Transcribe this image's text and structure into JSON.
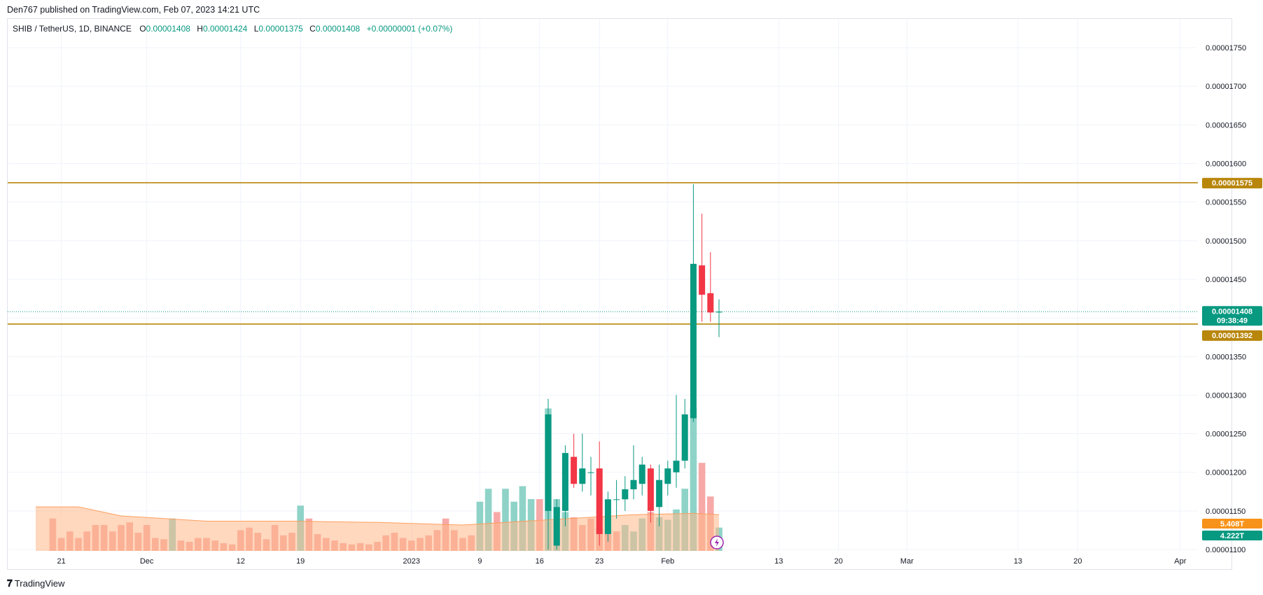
{
  "header": {
    "published": "Den767 published on TradingView.com, Feb 07, 2023 14:21 UTC"
  },
  "legend": {
    "symbol": "SHIB / TetherUS, 1D, BINANCE",
    "o_label": "O",
    "o": "0.00001408",
    "h_label": "H",
    "h": "0.00001424",
    "l_label": "L",
    "l": "0.00001375",
    "c_label": "C",
    "c": "0.00001408",
    "change": "+0.00000001 (+0.07%)"
  },
  "footer": {
    "logo": "𝟕",
    "brand": "TradingView"
  },
  "colors": {
    "up": "#089981",
    "down": "#f23645",
    "vol_up": "#8fd3c8",
    "vol_down": "#f7a9a7",
    "vol_ma": "#ffb888",
    "level": "#b8860b",
    "last": "#089981"
  },
  "chart_data": {
    "type": "candlestick",
    "y_axis": {
      "range": [
        1.1e-05,
        1.775e-05
      ],
      "ticks": [
        "0.00001750",
        "0.00001700",
        "0.00001650",
        "0.00001600",
        "0.00001550",
        "0.00001500",
        "0.00001450",
        "0.00001400",
        "0.00001350",
        "0.00001300",
        "0.00001250",
        "0.00001200",
        "0.00001150",
        "0.00001100"
      ]
    },
    "x_axis": {
      "ticks": [
        {
          "label": "21",
          "day": -77
        },
        {
          "label": "Dec",
          "day": -67
        },
        {
          "label": "12",
          "day": -56
        },
        {
          "label": "19",
          "day": -49
        },
        {
          "label": "2023",
          "day": -36
        },
        {
          "label": "9",
          "day": -28
        },
        {
          "label": "16",
          "day": -21
        },
        {
          "label": "23",
          "day": -14
        },
        {
          "label": "Feb",
          "day": -6
        },
        {
          "label": "13",
          "day": 7
        },
        {
          "label": "20",
          "day": 14
        },
        {
          "label": "Mar",
          "day": 22
        },
        {
          "label": "13",
          "day": 35
        },
        {
          "label": "20",
          "day": 42
        },
        {
          "label": "Apr",
          "day": 54
        }
      ]
    },
    "levels": [
      {
        "value": 1.575e-05,
        "label": "0.00001575"
      },
      {
        "value": 1.392e-05,
        "label": "0.00001392"
      }
    ],
    "last_price": {
      "value": 1.408e-05,
      "label": "0.00001408",
      "countdown": "09:38:49"
    },
    "volume_labels": [
      {
        "label": "5.408T",
        "color": "#f7931a"
      },
      {
        "label": "4.222T",
        "color": "#089981"
      }
    ],
    "candles": [
      {
        "day": -20,
        "o": 1.15e-05,
        "h": 1.295e-05,
        "l": 1.1e-05,
        "c": 1.275e-05
      },
      {
        "day": -19,
        "o": 1.105e-05,
        "h": 1.165e-05,
        "l": 1.1e-05,
        "c": 1.155e-05
      },
      {
        "day": -18,
        "o": 1.15e-05,
        "h": 1.235e-05,
        "l": 1.13e-05,
        "c": 1.225e-05
      },
      {
        "day": -17,
        "o": 1.22e-05,
        "h": 1.25e-05,
        "l": 1.18e-05,
        "c": 1.185e-05
      },
      {
        "day": -16,
        "o": 1.185e-05,
        "h": 1.25e-05,
        "l": 1.175e-05,
        "c": 1.205e-05
      },
      {
        "day": -15,
        "o": 1.2e-05,
        "h": 1.22e-05,
        "l": 1.17e-05,
        "c": 1.2e-05
      },
      {
        "day": -14,
        "o": 1.205e-05,
        "h": 1.24e-05,
        "l": 1.105e-05,
        "c": 1.12e-05
      },
      {
        "day": -13,
        "o": 1.12e-05,
        "h": 1.175e-05,
        "l": 1.11e-05,
        "c": 1.165e-05
      },
      {
        "day": -12,
        "o": 1.165e-05,
        "h": 1.19e-05,
        "l": 1.14e-05,
        "c": 1.165e-05
      },
      {
        "day": -11,
        "o": 1.165e-05,
        "h": 1.195e-05,
        "l": 1.15e-05,
        "c": 1.178e-05
      },
      {
        "day": -10,
        "o": 1.178e-05,
        "h": 1.235e-05,
        "l": 1.165e-05,
        "c": 1.19e-05
      },
      {
        "day": -9,
        "o": 1.185e-05,
        "h": 1.22e-05,
        "l": 1.17e-05,
        "c": 1.21e-05
      },
      {
        "day": -8,
        "o": 1.205e-05,
        "h": 1.21e-05,
        "l": 1.135e-05,
        "c": 1.15e-05
      },
      {
        "day": -7,
        "o": 1.155e-05,
        "h": 1.21e-05,
        "l": 1.13e-05,
        "c": 1.19e-05
      },
      {
        "day": -6,
        "o": 1.185e-05,
        "h": 1.215e-05,
        "l": 1.17e-05,
        "c": 1.205e-05
      },
      {
        "day": -5,
        "o": 1.2e-05,
        "h": 1.3e-05,
        "l": 1.18e-05,
        "c": 1.215e-05
      },
      {
        "day": -4,
        "o": 1.215e-05,
        "h": 1.295e-05,
        "l": 1.205e-05,
        "c": 1.275e-05
      },
      {
        "day": -3,
        "o": 1.27e-05,
        "h": 1.573e-05,
        "l": 1.265e-05,
        "c": 1.47e-05
      },
      {
        "day": -2,
        "o": 1.468e-05,
        "h": 1.535e-05,
        "l": 1.395e-05,
        "c": 1.43e-05
      },
      {
        "day": -1,
        "o": 1.432e-05,
        "h": 1.485e-05,
        "l": 1.395e-05,
        "c": 1.407e-05
      },
      {
        "day": 0,
        "o": 1.407e-05,
        "h": 1.424e-05,
        "l": 1.375e-05,
        "c": 1.408e-05
      }
    ],
    "volume": {
      "range": [
        0,
        6.0
      ],
      "bars": [
        {
          "day": -78,
          "v": 2.5,
          "up": false
        },
        {
          "day": -77,
          "v": 1.0,
          "up": false
        },
        {
          "day": -76,
          "v": 1.5,
          "up": false
        },
        {
          "day": -75,
          "v": 1.0,
          "up": false
        },
        {
          "day": -74,
          "v": 1.5,
          "up": false
        },
        {
          "day": -73,
          "v": 2.0,
          "up": false
        },
        {
          "day": -72,
          "v": 2.0,
          "up": false
        },
        {
          "day": -71,
          "v": 1.5,
          "up": false
        },
        {
          "day": -70,
          "v": 2.0,
          "up": false
        },
        {
          "day": -69,
          "v": 2.2,
          "up": false
        },
        {
          "day": -68,
          "v": 1.4,
          "up": false
        },
        {
          "day": -67,
          "v": 2.0,
          "up": false
        },
        {
          "day": -66,
          "v": 1.0,
          "up": false
        },
        {
          "day": -65,
          "v": 0.9,
          "up": false
        },
        {
          "day": -64,
          "v": 2.5,
          "up": true
        },
        {
          "day": -63,
          "v": 0.8,
          "up": false
        },
        {
          "day": -62,
          "v": 0.7,
          "up": false
        },
        {
          "day": -61,
          "v": 1.0,
          "up": false
        },
        {
          "day": -60,
          "v": 1.0,
          "up": false
        },
        {
          "day": -59,
          "v": 0.8,
          "up": false
        },
        {
          "day": -58,
          "v": 0.6,
          "up": false
        },
        {
          "day": -57,
          "v": 0.5,
          "up": false
        },
        {
          "day": -56,
          "v": 1.6,
          "up": false
        },
        {
          "day": -55,
          "v": 1.8,
          "up": false
        },
        {
          "day": -54,
          "v": 1.4,
          "up": false
        },
        {
          "day": -53,
          "v": 0.9,
          "up": false
        },
        {
          "day": -52,
          "v": 2.0,
          "up": false
        },
        {
          "day": -51,
          "v": 1.2,
          "up": false
        },
        {
          "day": -50,
          "v": 1.4,
          "up": false
        },
        {
          "day": -49,
          "v": 3.5,
          "up": true
        },
        {
          "day": -48,
          "v": 2.5,
          "up": false
        },
        {
          "day": -47,
          "v": 1.3,
          "up": false
        },
        {
          "day": -46,
          "v": 1.0,
          "up": false
        },
        {
          "day": -45,
          "v": 0.8,
          "up": false
        },
        {
          "day": -44,
          "v": 0.6,
          "up": false
        },
        {
          "day": -43,
          "v": 0.5,
          "up": false
        },
        {
          "day": -42,
          "v": 0.6,
          "up": false
        },
        {
          "day": -41,
          "v": 0.5,
          "up": false
        },
        {
          "day": -40,
          "v": 0.7,
          "up": false
        },
        {
          "day": -39,
          "v": 1.2,
          "up": false
        },
        {
          "day": -38,
          "v": 1.4,
          "up": false
        },
        {
          "day": -37,
          "v": 1.0,
          "up": false
        },
        {
          "day": -36,
          "v": 0.8,
          "up": false
        },
        {
          "day": -35,
          "v": 1.0,
          "up": false
        },
        {
          "day": -34,
          "v": 1.2,
          "up": false
        },
        {
          "day": -33,
          "v": 1.6,
          "up": false
        },
        {
          "day": -32,
          "v": 2.5,
          "up": false
        },
        {
          "day": -31,
          "v": 1.6,
          "up": false
        },
        {
          "day": -30,
          "v": 1.0,
          "up": false
        },
        {
          "day": -29,
          "v": 1.2,
          "up": false
        },
        {
          "day": -28,
          "v": 3.8,
          "up": true
        },
        {
          "day": -27,
          "v": 4.8,
          "up": true
        },
        {
          "day": -26,
          "v": 3.0,
          "up": false
        },
        {
          "day": -25,
          "v": 4.8,
          "up": true
        },
        {
          "day": -24,
          "v": 3.8,
          "up": true
        },
        {
          "day": -23,
          "v": 5.0,
          "up": true
        },
        {
          "day": -22,
          "v": 4.0,
          "up": true
        },
        {
          "day": -21,
          "v": 4.0,
          "up": false
        },
        {
          "day": -20,
          "v": 11.0,
          "up": true
        },
        {
          "day": -19,
          "v": 4.0,
          "up": true
        },
        {
          "day": -18,
          "v": 3.0,
          "up": true
        },
        {
          "day": -17,
          "v": 2.6,
          "up": false
        },
        {
          "day": -16,
          "v": 2.0,
          "up": false
        },
        {
          "day": -15,
          "v": 2.5,
          "up": false
        },
        {
          "day": -14,
          "v": 1.8,
          "up": false
        },
        {
          "day": -13,
          "v": 1.6,
          "up": false
        },
        {
          "day": -12,
          "v": 1.5,
          "up": false
        },
        {
          "day": -11,
          "v": 2.0,
          "up": true
        },
        {
          "day": -10,
          "v": 1.5,
          "up": true
        },
        {
          "day": -9,
          "v": 2.5,
          "up": true
        },
        {
          "day": -8,
          "v": 3.0,
          "up": false
        },
        {
          "day": -7,
          "v": 2.6,
          "up": true
        },
        {
          "day": -6,
          "v": 2.4,
          "up": true
        },
        {
          "day": -5,
          "v": 3.2,
          "up": true
        },
        {
          "day": -4,
          "v": 4.8,
          "up": true
        },
        {
          "day": -3,
          "v": 11.0,
          "up": true
        },
        {
          "day": -2,
          "v": 6.8,
          "up": false
        },
        {
          "day": -1,
          "v": 4.2,
          "up": false
        },
        {
          "day": 0,
          "v": 1.8,
          "up": true
        }
      ],
      "ma": [
        {
          "day": -80,
          "v": 3.4
        },
        {
          "day": -75,
          "v": 3.4
        },
        {
          "day": -70,
          "v": 2.7
        },
        {
          "day": -60,
          "v": 2.3
        },
        {
          "day": -50,
          "v": 2.3
        },
        {
          "day": -40,
          "v": 2.2
        },
        {
          "day": -30,
          "v": 2.0
        },
        {
          "day": -20,
          "v": 2.4
        },
        {
          "day": -10,
          "v": 2.8
        },
        {
          "day": -3,
          "v": 2.9
        },
        {
          "day": 0,
          "v": 2.8
        }
      ]
    }
  }
}
